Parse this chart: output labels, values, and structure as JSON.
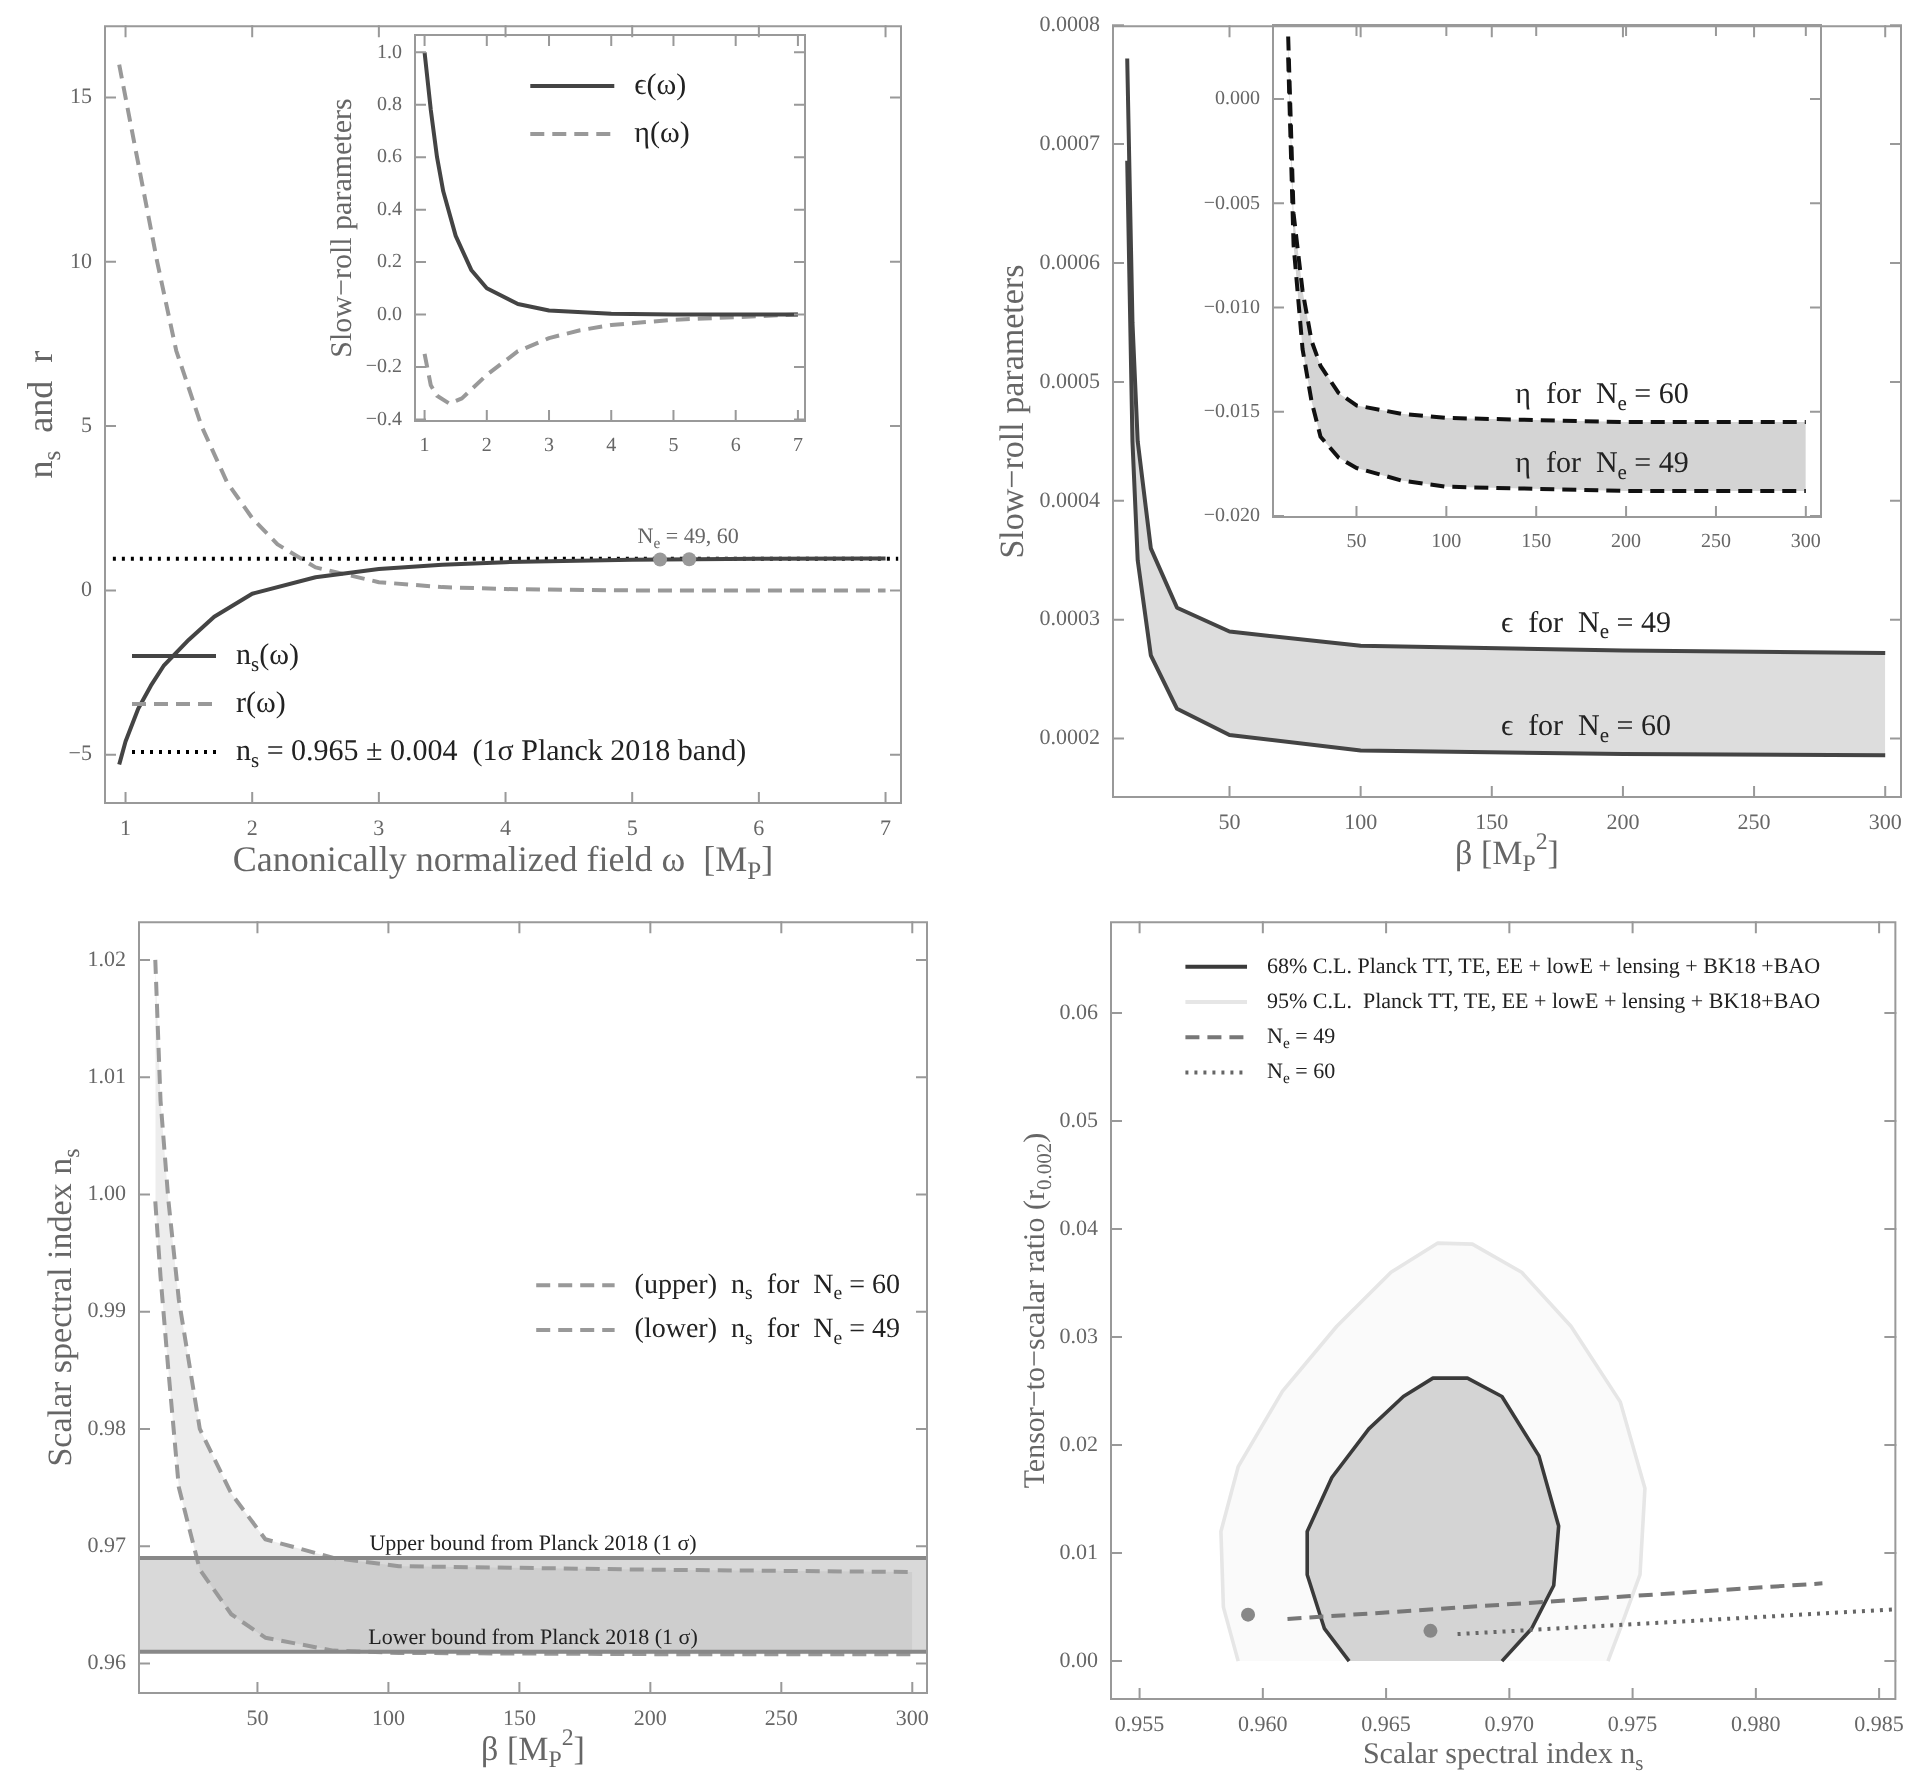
{
  "chart_data": [
    {
      "type": "line",
      "xlabel": "Canonically normalized field ω  [M$_{P}$]",
      "ylabel": "n$_{s}$  and  r",
      "xlim": [
        0.83,
        7.13
      ],
      "ylim": [
        -6.5,
        17.2
      ],
      "xticks": [
        1,
        2,
        3,
        4,
        5,
        6,
        7
      ],
      "yticks": [
        {
          "value": -5,
          "label": "−5"
        },
        0,
        5,
        10,
        15
      ],
      "legend": "bottom left",
      "annotations": [
        {
          "text": "N$_{e}$ = 49, 60",
          "x": 5.22,
          "y": 0.94
        }
      ],
      "series": [
        {
          "name": "n$_{s}$(ω)",
          "color": "#444444",
          "line_style": "solid",
          "x": [
            0.95,
            1,
            1.1,
            1.2,
            1.3,
            1.5,
            1.7,
            2,
            2.5,
            3,
            3.5,
            4,
            5,
            6,
            7
          ],
          "values": [
            -5.3,
            -4.6,
            -3.6,
            -2.9,
            -2.3,
            -1.5,
            -0.8,
            -0.1,
            0.4,
            0.65,
            0.78,
            0.86,
            0.93,
            0.96,
            0.97
          ]
        },
        {
          "name": "r(ω)",
          "color": "#999999",
          "line_style": "dashed",
          "x": [
            0.95,
            1,
            1.1,
            1.25,
            1.4,
            1.6,
            1.8,
            2,
            2.2,
            2.5,
            3,
            3.5,
            4,
            5,
            7
          ],
          "values": [
            16,
            15,
            13,
            10,
            7.3,
            5,
            3.3,
            2.2,
            1.4,
            0.7,
            0.25,
            0.1,
            0.04,
            0,
            0
          ]
        },
        {
          "name": "n$_{s}$ = 0.965 ± 0.004  (1σ Planck 2018 band)",
          "color": "#000000",
          "line_style": "dotted",
          "x": [
            0.9,
            7.1
          ],
          "values": [
            0.965,
            0.965
          ]
        },
        {
          "type": "scatter",
          "marker": "circle",
          "color": "#999999",
          "x": [
            5.22,
            5.45
          ],
          "values": [
            0.94,
            0.95
          ]
        }
      ]
    },
    {
      "type": "line",
      "ylabel": "Slow−roll parameters",
      "xlim": [
        0.83,
        7.13
      ],
      "ylim": [
        -0.41,
        1.07
      ],
      "xticks": [
        1,
        2,
        3,
        4,
        5,
        6,
        7
      ],
      "yticks": [
        {
          "value": -0.4,
          "label": "−0.4"
        },
        {
          "value": -0.2,
          "label": "−0.2"
        },
        {
          "value": 0,
          "label": "0.0"
        },
        0.2,
        0.4,
        0.6,
        0.8,
        {
          "value": 1,
          "label": "1.0"
        }
      ],
      "legend": "top",
      "series": [
        {
          "name": "ϵ(ω)",
          "color": "#444444",
          "line_style": "solid",
          "x": [
            1,
            1.1,
            1.2,
            1.3,
            1.5,
            1.75,
            2,
            2.5,
            3,
            4,
            5,
            7
          ],
          "values": [
            1,
            0.78,
            0.6,
            0.47,
            0.3,
            0.17,
            0.1,
            0.04,
            0.015,
            0.003,
            0,
            0
          ]
        },
        {
          "name": "η(ω)",
          "color": "#999999",
          "line_style": "dashed",
          "x": [
            1,
            1.1,
            1.2,
            1.4,
            1.6,
            2,
            2.5,
            3,
            3.5,
            4,
            5,
            6,
            7
          ],
          "values": [
            -0.15,
            -0.27,
            -0.31,
            -0.34,
            -0.32,
            -0.23,
            -0.14,
            -0.09,
            -0.06,
            -0.04,
            -0.02,
            -0.01,
            0
          ]
        }
      ]
    },
    {
      "type": "line",
      "xlabel": "β [M$_{P}$$^{2}$]",
      "ylabel": "Slow−roll parameters",
      "xlim": [
        5.2,
        306.4
      ],
      "ylim": [
        0.00015,
        0.0008
      ],
      "xticks": [
        50,
        100,
        150,
        200,
        250,
        300
      ],
      "yticks": [
        0.0002,
        0.0003,
        0.0004,
        0.0005,
        0.0006,
        0.0007,
        0.0008
      ],
      "series": [
        {
          "name": "ϵ  for  N$_{e}$ = 49",
          "color": "#444444",
          "line_style": "solid",
          "x": [
            11,
            13,
            15,
            20,
            30,
            50,
            100,
            200,
            300
          ],
          "values": [
            0.000772,
            0.00055,
            0.00045,
            0.00036,
            0.00031,
            0.00029,
            0.000278,
            0.000274,
            0.000272
          ],
          "upper": [
            0.000772,
            0.00055,
            0.00045,
            0.00036,
            0.00031,
            0.00029,
            0.000278,
            0.000274,
            0.000272
          ],
          "lower": [
            0.000686,
            0.00045,
            0.00035,
            0.00027,
            0.000225,
            0.000203,
            0.00019,
            0.000187,
            0.000186
          ]
        },
        {
          "name": "ϵ  for  N$_{e}$ = 60",
          "color": "#444444",
          "line_style": "solid",
          "x": [
            11,
            13,
            15,
            20,
            30,
            50,
            100,
            200,
            300
          ],
          "values": [
            0.000686,
            0.00045,
            0.00035,
            0.00027,
            0.000225,
            0.000203,
            0.00019,
            0.000187,
            0.000186
          ]
        }
      ]
    },
    {
      "type": "line",
      "xlim": [
        3,
        309
      ],
      "ylim": [
        -0.0201,
        0.0036
      ],
      "xticks": [
        50,
        100,
        150,
        200,
        250,
        300
      ],
      "yticks": [
        {
          "value": -0.02,
          "label": "−0.020"
        },
        {
          "value": -0.015,
          "label": "−0.015"
        },
        {
          "value": -0.01,
          "label": "−0.010"
        },
        {
          "value": -0.005,
          "label": "−0.005"
        },
        {
          "value": 0,
          "label": "0.000"
        }
      ],
      "series": [
        {
          "name": "η  for  N$_{e}$ = 60",
          "color": "#111111",
          "line_style": "dashed",
          "x": [
            12,
            15,
            20,
            25,
            30,
            40,
            50,
            75,
            100,
            200,
            300
          ],
          "values": [
            0.003,
            -0.0055,
            -0.0092,
            -0.0116,
            -0.0128,
            -0.0141,
            -0.0147,
            -0.0151,
            -0.0153,
            -0.0155,
            -0.0155
          ],
          "upper": [
            0.003,
            -0.0055,
            -0.0092,
            -0.0116,
            -0.0128,
            -0.0141,
            -0.0147,
            -0.0151,
            -0.0153,
            -0.0155,
            -0.0155
          ],
          "lower": [
            0.002,
            -0.007,
            -0.012,
            -0.0145,
            -0.0162,
            -0.0172,
            -0.0177,
            -0.0183,
            -0.0186,
            -0.0188,
            -0.0188
          ]
        },
        {
          "name": "η  for  N$_{e}$ = 49",
          "color": "#111111",
          "line_style": "dashed",
          "x": [
            12,
            15,
            20,
            25,
            30,
            40,
            50,
            75,
            100,
            200,
            300
          ],
          "values": [
            0.002,
            -0.007,
            -0.012,
            -0.0145,
            -0.0162,
            -0.0172,
            -0.0177,
            -0.0183,
            -0.0186,
            -0.0188,
            -0.0188
          ]
        }
      ]
    },
    {
      "type": "line",
      "xlabel": "β [M$_{P}$$^{2}$]",
      "ylabel": "Scalar spectral index n$_{s}$",
      "xlim": [
        4.4,
        306
      ],
      "ylim": [
        0.9574,
        1.0233
      ],
      "xticks": [
        50,
        100,
        150,
        200,
        250,
        300
      ],
      "yticks": [
        0.96,
        0.97,
        0.98,
        0.99,
        {
          "value": 1,
          "label": "1.00"
        },
        1.01,
        1.02
      ],
      "legend": "right",
      "bands": [
        {
          "axis": "y",
          "from": 0.961,
          "to": 0.969,
          "color": "#d9d9d9"
        }
      ],
      "ref_lines": [
        {
          "axis": "y",
          "value": 0.969,
          "label": "Upper bound from Planck 2018 (1 σ)",
          "color": "#888888"
        },
        {
          "axis": "y",
          "value": 0.961,
          "label": "Lower bound from Planck 2018 (1 σ)",
          "color": "#888888"
        }
      ],
      "series": [
        {
          "name": "(upper)  n$_{s}$  for  N$_{e}$ = 60",
          "color": "#999999",
          "line_style": "dashed",
          "x": [
            11,
            13,
            16,
            20,
            28,
            40,
            53,
            79,
            104,
            200,
            300
          ],
          "values": [
            1.02,
            1.008,
            0.9995,
            0.991,
            0.98,
            0.9745,
            0.9706,
            0.969,
            0.9683,
            0.968,
            0.9678
          ],
          "upper": [
            1.02,
            1.008,
            0.9995,
            0.991,
            0.98,
            0.9745,
            0.9706,
            0.969,
            0.9683,
            0.968,
            0.9678
          ],
          "lower": [
            0.9994,
            0.993,
            0.985,
            0.975,
            0.968,
            0.9642,
            0.9622,
            0.9611,
            0.9609,
            0.9608,
            0.9608
          ]
        },
        {
          "name": "(lower)  n$_{s}$  for  N$_{e}$ = 49",
          "color": "#999999",
          "line_style": "dashed",
          "x": [
            11,
            13,
            16,
            20,
            28,
            40,
            53,
            79,
            104,
            200,
            300
          ],
          "values": [
            0.9994,
            0.993,
            0.985,
            0.975,
            0.968,
            0.9642,
            0.9622,
            0.9611,
            0.9609,
            0.9608,
            0.9608
          ]
        }
      ]
    },
    {
      "type": "line",
      "xlabel": "Scalar spectral index n$_{s}$",
      "ylabel": "Tensor−to−scalar ratio (r$_{0.002}$)",
      "xlim": [
        0.9538,
        0.9857
      ],
      "ylim": [
        -0.0036,
        0.0685
      ],
      "xticks": [
        0.955,
        {
          "value": 0.96,
          "label": "0.960"
        },
        0.965,
        {
          "value": 0.97,
          "label": "0.970"
        },
        0.975,
        {
          "value": 0.98,
          "label": "0.980"
        },
        0.985
      ],
      "yticks": [
        {
          "value": 0,
          "label": "0.00"
        },
        0.01,
        0.02,
        0.03,
        0.04,
        0.05,
        0.06
      ],
      "legend": "top",
      "series": [
        {
          "type": "area",
          "name": "68% C.L. Planck TT, TE, EE + lowE + lensing + BK18 +BAO",
          "color": "#3a3a3a",
          "x": [
            0.9635,
            0.9625,
            0.9618,
            0.9618,
            0.9628,
            0.9643,
            0.9657,
            0.9669,
            0.9683,
            0.9697,
            0.9712,
            0.972,
            0.9718,
            0.9709,
            0.9697
          ],
          "values": [
            0,
            0.003,
            0.008,
            0.012,
            0.017,
            0.0215,
            0.0245,
            0.0262,
            0.0262,
            0.0245,
            0.019,
            0.0125,
            0.007,
            0.003,
            0
          ]
        },
        {
          "type": "area",
          "name": "95% C.L.  Planck TT, TE, EE + lowE + lensing + BK18+BAO",
          "color": "#e6e6e6",
          "x": [
            0.959,
            0.9584,
            0.9583,
            0.959,
            0.9608,
            0.963,
            0.9652,
            0.9671,
            0.9685,
            0.9705,
            0.9725,
            0.9745,
            0.9755,
            0.9753,
            0.9745,
            0.974
          ],
          "values": [
            0,
            0.005,
            0.012,
            0.018,
            0.025,
            0.031,
            0.036,
            0.0387,
            0.0386,
            0.036,
            0.031,
            0.024,
            0.016,
            0.008,
            0.003,
            0
          ]
        },
        {
          "name": "N$_{e}$ = 49",
          "color": "#777777",
          "line_style": "dashed",
          "x": [
            0.961,
            0.9827
          ],
          "values": [
            0.0039,
            0.0072
          ]
        },
        {
          "name": "N$_{e}$ = 60",
          "color": "#666666",
          "line_style": "dotted",
          "x": [
            0.9679,
            0.9857
          ],
          "values": [
            0.0025,
            0.0048
          ]
        },
        {
          "type": "scatter",
          "marker": "circle",
          "color": "#888888",
          "x": [
            0.9594,
            0.9668
          ],
          "values": [
            0.0043,
            0.0028
          ]
        }
      ]
    }
  ]
}
